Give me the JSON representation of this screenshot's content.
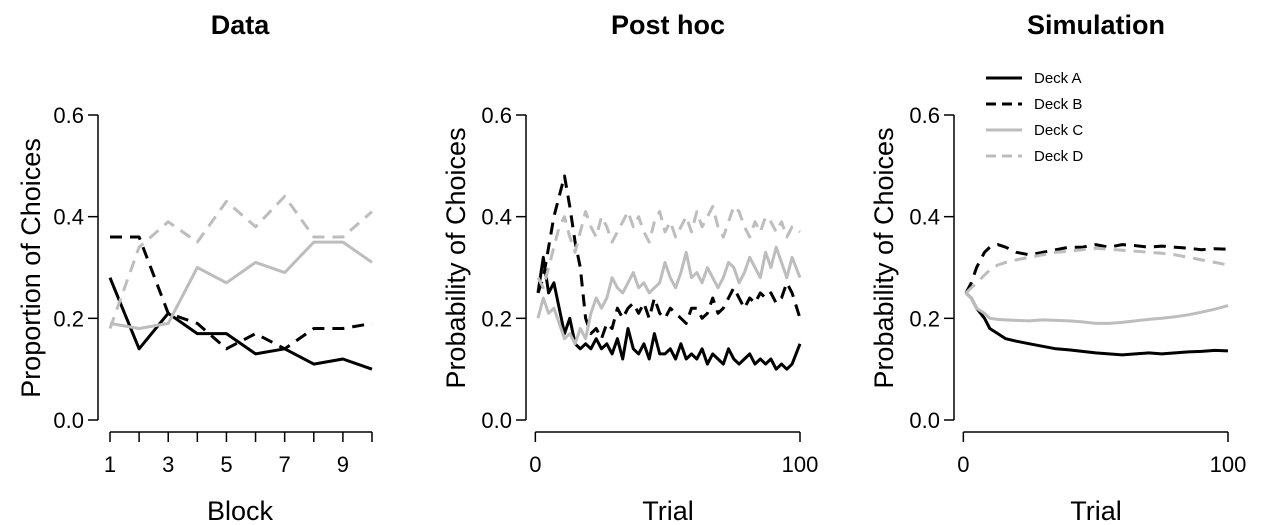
{
  "style": {
    "dark": "#000000",
    "light": "#bdbdbd"
  },
  "chart_data": [
    {
      "type": "line",
      "title": "Data",
      "xlabel": "Block",
      "ylabel": "Proportion of Choices",
      "xlim": [
        1,
        10
      ],
      "ylim": [
        0,
        0.6
      ],
      "x_tick_marks": [
        1,
        2,
        3,
        4,
        5,
        6,
        7,
        8,
        9,
        10
      ],
      "x_tick_labels": [
        "1",
        "",
        "3",
        "",
        "5",
        "",
        "7",
        "",
        "9",
        ""
      ],
      "y_ticks": [
        "0.0",
        "0.2",
        "0.4",
        "0.6"
      ],
      "x": [
        1,
        2,
        3,
        4,
        5,
        6,
        7,
        8,
        9,
        10
      ],
      "series": [
        {
          "name": "Deck A",
          "color": "dark",
          "dashed": false,
          "values": [
            0.28,
            0.14,
            0.21,
            0.17,
            0.17,
            0.13,
            0.14,
            0.11,
            0.12,
            0.1
          ]
        },
        {
          "name": "Deck B",
          "color": "dark",
          "dashed": true,
          "values": [
            0.36,
            0.36,
            0.21,
            0.19,
            0.14,
            0.17,
            0.14,
            0.18,
            0.18,
            0.19
          ]
        },
        {
          "name": "Deck C",
          "color": "light",
          "dashed": false,
          "values": [
            0.19,
            0.18,
            0.19,
            0.3,
            0.27,
            0.31,
            0.29,
            0.35,
            0.35,
            0.31
          ]
        },
        {
          "name": "Deck D",
          "color": "light",
          "dashed": true,
          "values": [
            0.18,
            0.34,
            0.39,
            0.35,
            0.43,
            0.38,
            0.44,
            0.36,
            0.36,
            0.41
          ]
        }
      ]
    },
    {
      "type": "line",
      "title": "Post hoc",
      "xlabel": "Trial",
      "ylabel": "Probability of Choices",
      "xlim": [
        1,
        100
      ],
      "ylim": [
        0,
        0.6
      ],
      "x_tick_marks": [
        0,
        100
      ],
      "x_tick_labels": [
        "0",
        "100"
      ],
      "y_ticks": [
        "0.0",
        "0.2",
        "0.4",
        "0.6"
      ],
      "x": [
        1,
        3,
        5,
        7,
        9,
        11,
        13,
        15,
        17,
        19,
        21,
        23,
        25,
        27,
        29,
        31,
        33,
        35,
        37,
        39,
        41,
        43,
        45,
        47,
        49,
        51,
        53,
        55,
        57,
        59,
        61,
        63,
        65,
        67,
        69,
        71,
        73,
        75,
        77,
        79,
        81,
        83,
        85,
        87,
        89,
        91,
        93,
        95,
        97,
        100
      ],
      "series": [
        {
          "name": "Deck A",
          "color": "dark",
          "dashed": false,
          "values": [
            0.25,
            0.32,
            0.25,
            0.27,
            0.22,
            0.17,
            0.2,
            0.15,
            0.14,
            0.15,
            0.14,
            0.16,
            0.14,
            0.15,
            0.13,
            0.16,
            0.12,
            0.18,
            0.14,
            0.13,
            0.15,
            0.12,
            0.17,
            0.13,
            0.13,
            0.14,
            0.12,
            0.15,
            0.12,
            0.13,
            0.12,
            0.14,
            0.11,
            0.13,
            0.12,
            0.11,
            0.14,
            0.12,
            0.11,
            0.12,
            0.13,
            0.11,
            0.12,
            0.11,
            0.12,
            0.1,
            0.11,
            0.1,
            0.11,
            0.15
          ]
        },
        {
          "name": "Deck B",
          "color": "dark",
          "dashed": true,
          "values": [
            0.25,
            0.28,
            0.34,
            0.4,
            0.44,
            0.48,
            0.42,
            0.35,
            0.3,
            0.2,
            0.17,
            0.18,
            0.16,
            0.19,
            0.18,
            0.22,
            0.2,
            0.22,
            0.23,
            0.21,
            0.23,
            0.2,
            0.24,
            0.21,
            0.2,
            0.22,
            0.21,
            0.2,
            0.19,
            0.22,
            0.22,
            0.2,
            0.21,
            0.24,
            0.21,
            0.22,
            0.24,
            0.26,
            0.24,
            0.22,
            0.24,
            0.23,
            0.25,
            0.24,
            0.25,
            0.23,
            0.24,
            0.27,
            0.25,
            0.2
          ]
        },
        {
          "name": "Deck C",
          "color": "light",
          "dashed": false,
          "values": [
            0.2,
            0.24,
            0.21,
            0.22,
            0.19,
            0.16,
            0.17,
            0.15,
            0.18,
            0.16,
            0.21,
            0.24,
            0.22,
            0.24,
            0.28,
            0.26,
            0.25,
            0.27,
            0.29,
            0.26,
            0.27,
            0.25,
            0.26,
            0.27,
            0.31,
            0.28,
            0.26,
            0.29,
            0.33,
            0.28,
            0.29,
            0.27,
            0.3,
            0.28,
            0.26,
            0.28,
            0.31,
            0.3,
            0.27,
            0.29,
            0.32,
            0.3,
            0.28,
            0.33,
            0.3,
            0.34,
            0.31,
            0.28,
            0.32,
            0.28
          ]
        },
        {
          "name": "Deck D",
          "color": "light",
          "dashed": true,
          "values": [
            0.28,
            0.26,
            0.3,
            0.34,
            0.38,
            0.4,
            0.36,
            0.33,
            0.37,
            0.41,
            0.38,
            0.36,
            0.4,
            0.38,
            0.35,
            0.37,
            0.39,
            0.41,
            0.38,
            0.4,
            0.37,
            0.35,
            0.39,
            0.41,
            0.37,
            0.39,
            0.36,
            0.38,
            0.4,
            0.37,
            0.41,
            0.38,
            0.4,
            0.42,
            0.38,
            0.36,
            0.39,
            0.42,
            0.41,
            0.38,
            0.36,
            0.39,
            0.37,
            0.4,
            0.39,
            0.37,
            0.39,
            0.36,
            0.38,
            0.37
          ]
        }
      ]
    },
    {
      "type": "line",
      "title": "Simulation",
      "xlabel": "Trial",
      "ylabel": "Probability of Choices",
      "xlim": [
        1,
        100
      ],
      "ylim": [
        0,
        0.6
      ],
      "x_tick_marks": [
        0,
        100
      ],
      "x_tick_labels": [
        "0",
        "100"
      ],
      "y_ticks": [
        "0.0",
        "0.2",
        "0.4",
        "0.6"
      ],
      "legend": {
        "position": "top-left",
        "entries": [
          "Deck A",
          "Deck B",
          "Deck C",
          "Deck D"
        ]
      },
      "x": [
        1,
        3,
        5,
        8,
        10,
        13,
        16,
        20,
        25,
        30,
        35,
        40,
        45,
        50,
        55,
        60,
        65,
        70,
        75,
        80,
        85,
        90,
        95,
        100
      ],
      "series": [
        {
          "name": "Deck A",
          "color": "dark",
          "dashed": false,
          "values": [
            0.25,
            0.24,
            0.22,
            0.2,
            0.18,
            0.17,
            0.16,
            0.155,
            0.15,
            0.145,
            0.14,
            0.138,
            0.135,
            0.132,
            0.13,
            0.128,
            0.13,
            0.132,
            0.13,
            0.132,
            0.134,
            0.135,
            0.137,
            0.136
          ]
        },
        {
          "name": "Deck B",
          "color": "dark",
          "dashed": true,
          "values": [
            0.25,
            0.27,
            0.3,
            0.33,
            0.34,
            0.345,
            0.34,
            0.33,
            0.325,
            0.33,
            0.335,
            0.34,
            0.34,
            0.345,
            0.34,
            0.345,
            0.343,
            0.34,
            0.342,
            0.34,
            0.338,
            0.335,
            0.337,
            0.336
          ]
        },
        {
          "name": "Deck C",
          "color": "light",
          "dashed": false,
          "values": [
            0.25,
            0.24,
            0.22,
            0.21,
            0.2,
            0.198,
            0.197,
            0.196,
            0.195,
            0.197,
            0.196,
            0.195,
            0.193,
            0.19,
            0.19,
            0.192,
            0.195,
            0.198,
            0.2,
            0.203,
            0.207,
            0.212,
            0.218,
            0.225
          ]
        },
        {
          "name": "Deck D",
          "color": "light",
          "dashed": true,
          "values": [
            0.25,
            0.26,
            0.27,
            0.285,
            0.295,
            0.305,
            0.31,
            0.315,
            0.32,
            0.325,
            0.33,
            0.332,
            0.335,
            0.338,
            0.336,
            0.334,
            0.332,
            0.33,
            0.328,
            0.325,
            0.32,
            0.315,
            0.31,
            0.305
          ]
        }
      ]
    }
  ]
}
